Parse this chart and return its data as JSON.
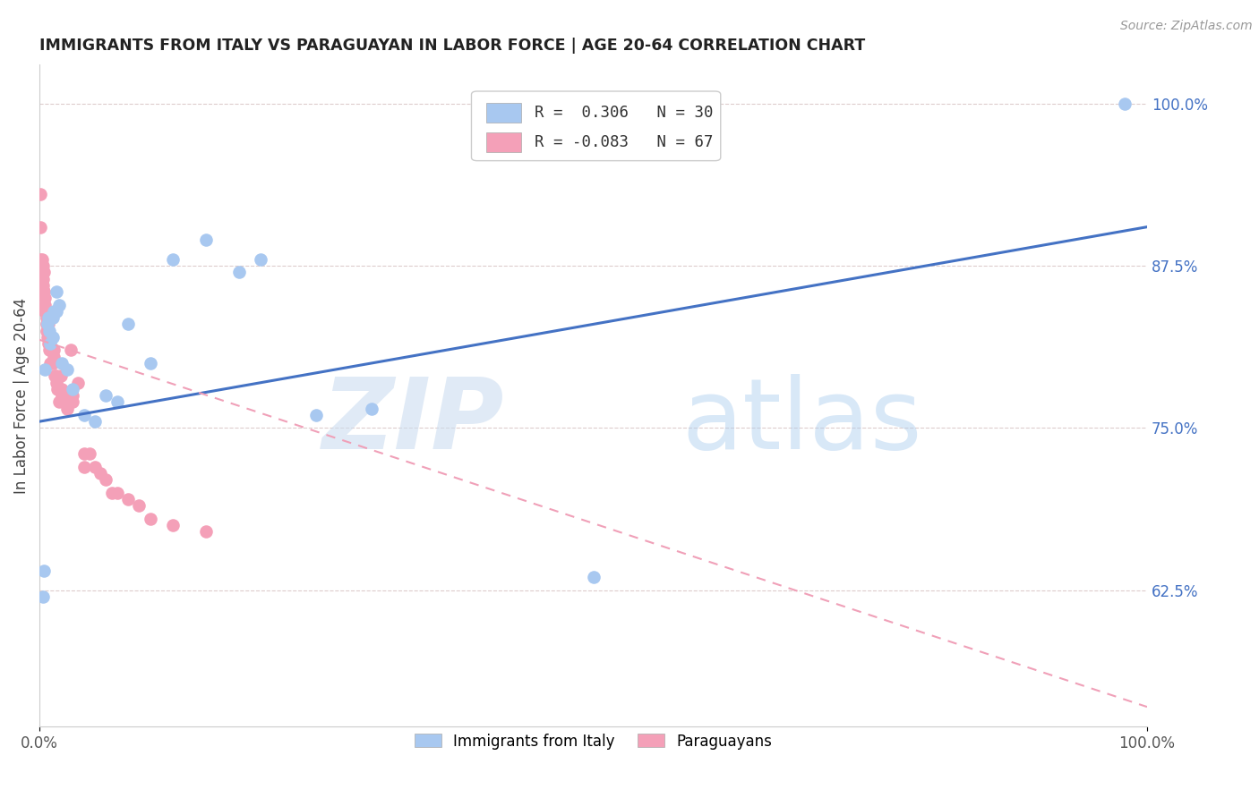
{
  "title": "IMMIGRANTS FROM ITALY VS PARAGUAYAN IN LABOR FORCE | AGE 20-64 CORRELATION CHART",
  "source": "Source: ZipAtlas.com",
  "ylabel": "In Labor Force | Age 20-64",
  "right_yticks": [
    0.625,
    0.75,
    0.875,
    1.0
  ],
  "right_yticklabels": [
    "62.5%",
    "75.0%",
    "87.5%",
    "100.0%"
  ],
  "xlim": [
    0.0,
    1.0
  ],
  "ylim": [
    0.52,
    1.03
  ],
  "legend_R_italy": "0.306",
  "legend_N_italy": "30",
  "legend_R_paraguay": "-0.083",
  "legend_N_paraguay": "67",
  "italy_color": "#a8c8f0",
  "paraguay_color": "#f4a0b8",
  "italy_line_color": "#4472c4",
  "paraguay_line_color": "#f0a0b8",
  "italy_line_x0": 0.0,
  "italy_line_y0": 0.755,
  "italy_line_x1": 1.0,
  "italy_line_y1": 0.905,
  "paraguay_line_x0": 0.0,
  "paraguay_line_y0": 0.818,
  "paraguay_line_x1": 1.0,
  "paraguay_line_y1": 0.535,
  "watermark_zip": "ZIP",
  "watermark_atlas": "atlas",
  "italy_scatter_x": [
    0.003,
    0.004,
    0.005,
    0.007,
    0.008,
    0.009,
    0.01,
    0.012,
    0.013,
    0.015,
    0.018,
    0.02,
    0.025,
    0.03,
    0.04,
    0.05,
    0.06,
    0.07,
    0.08,
    0.1,
    0.12,
    0.15,
    0.18,
    0.2,
    0.25,
    0.3,
    0.012,
    0.015,
    0.5,
    0.98
  ],
  "italy_scatter_y": [
    0.62,
    0.64,
    0.795,
    0.83,
    0.835,
    0.825,
    0.815,
    0.835,
    0.84,
    0.855,
    0.845,
    0.8,
    0.795,
    0.78,
    0.76,
    0.755,
    0.775,
    0.77,
    0.83,
    0.8,
    0.88,
    0.895,
    0.87,
    0.88,
    0.76,
    0.765,
    0.82,
    0.84,
    0.635,
    1.0
  ],
  "paraguay_scatter_x": [
    0.001,
    0.001,
    0.001,
    0.002,
    0.002,
    0.002,
    0.003,
    0.003,
    0.003,
    0.003,
    0.004,
    0.004,
    0.004,
    0.005,
    0.005,
    0.005,
    0.005,
    0.006,
    0.006,
    0.006,
    0.006,
    0.007,
    0.007,
    0.007,
    0.008,
    0.008,
    0.008,
    0.009,
    0.009,
    0.009,
    0.01,
    0.01,
    0.01,
    0.01,
    0.012,
    0.012,
    0.013,
    0.013,
    0.014,
    0.015,
    0.015,
    0.016,
    0.018,
    0.018,
    0.019,
    0.02,
    0.02,
    0.022,
    0.025,
    0.025,
    0.028,
    0.03,
    0.03,
    0.035,
    0.04,
    0.04,
    0.045,
    0.05,
    0.055,
    0.06,
    0.065,
    0.07,
    0.08,
    0.09,
    0.1,
    0.12,
    0.15
  ],
  "paraguay_scatter_y": [
    0.93,
    0.905,
    0.88,
    0.87,
    0.875,
    0.88,
    0.875,
    0.87,
    0.865,
    0.86,
    0.87,
    0.855,
    0.855,
    0.85,
    0.845,
    0.84,
    0.84,
    0.84,
    0.835,
    0.83,
    0.825,
    0.83,
    0.825,
    0.82,
    0.83,
    0.82,
    0.815,
    0.82,
    0.815,
    0.81,
    0.82,
    0.81,
    0.81,
    0.8,
    0.81,
    0.8,
    0.81,
    0.805,
    0.79,
    0.79,
    0.785,
    0.78,
    0.78,
    0.77,
    0.79,
    0.78,
    0.775,
    0.77,
    0.775,
    0.765,
    0.81,
    0.775,
    0.77,
    0.785,
    0.73,
    0.72,
    0.73,
    0.72,
    0.715,
    0.71,
    0.7,
    0.7,
    0.695,
    0.69,
    0.68,
    0.675,
    0.67
  ]
}
